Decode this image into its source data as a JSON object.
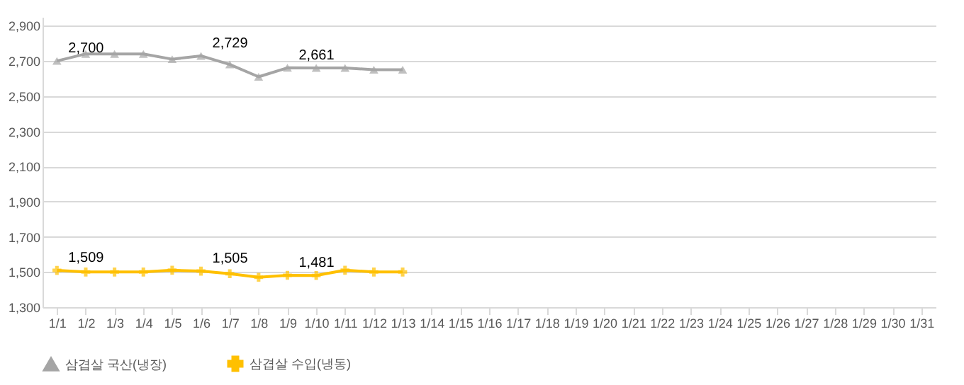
{
  "chart_data": {
    "type": "line",
    "categories": [
      "1/1",
      "1/2",
      "1/3",
      "1/4",
      "1/5",
      "1/6",
      "1/7",
      "1/8",
      "1/9",
      "1/10",
      "1/11",
      "1/12",
      "1/13",
      "1/14",
      "1/15",
      "1/16",
      "1/17",
      "1/18",
      "1/19",
      "1/20",
      "1/21",
      "1/22",
      "1/23",
      "1/24",
      "1/25",
      "1/26",
      "1/27",
      "1/28",
      "1/29",
      "1/30",
      "1/31"
    ],
    "series": [
      {
        "name": "삼겹살 국산(냉장)",
        "color": "#a5a5a5",
        "marker": "triangle",
        "values": [
          2700,
          2740,
          2740,
          2740,
          2710,
          2729,
          2680,
          2610,
          2661,
          2660,
          2660,
          2650,
          2650,
          null,
          null,
          null,
          null,
          null,
          null,
          null,
          null,
          null,
          null,
          null,
          null,
          null,
          null,
          null,
          null,
          null,
          null
        ],
        "value_labels": [
          "2,700",
          null,
          null,
          null,
          null,
          "2,729",
          null,
          null,
          "2,661",
          null,
          null,
          null,
          null,
          null,
          null,
          null,
          null,
          null,
          null,
          null,
          null,
          null,
          null,
          null,
          null,
          null,
          null,
          null,
          null,
          null,
          null
        ]
      },
      {
        "name": "삼겹살 수입(냉동)",
        "color": "#ffc000",
        "marker": "cross",
        "values": [
          1509,
          1500,
          1500,
          1500,
          1510,
          1505,
          1490,
          1470,
          1481,
          1480,
          1510,
          1500,
          1500,
          null,
          null,
          null,
          null,
          null,
          null,
          null,
          null,
          null,
          null,
          null,
          null,
          null,
          null,
          null,
          null,
          null,
          null
        ],
        "value_labels": [
          "1,509",
          null,
          null,
          null,
          null,
          "1,505",
          null,
          null,
          "1,481",
          null,
          null,
          null,
          null,
          null,
          null,
          null,
          null,
          null,
          null,
          null,
          null,
          null,
          null,
          null,
          null,
          null,
          null,
          null,
          null,
          null,
          null
        ]
      }
    ],
    "ylim": [
      1300,
      2950
    ],
    "yticks": [
      {
        "value": 1300,
        "label": "1,300"
      },
      {
        "value": 1500,
        "label": "1,500"
      },
      {
        "value": 1700,
        "label": "1,700"
      },
      {
        "value": 1900,
        "label": "1,900"
      },
      {
        "value": 2100,
        "label": "2,100"
      },
      {
        "value": 2300,
        "label": "2,300"
      },
      {
        "value": 2500,
        "label": "2,500"
      },
      {
        "value": 2700,
        "label": "2,700"
      },
      {
        "value": 2900,
        "label": "2,900"
      }
    ],
    "grid": "y",
    "legend": "bottom"
  }
}
